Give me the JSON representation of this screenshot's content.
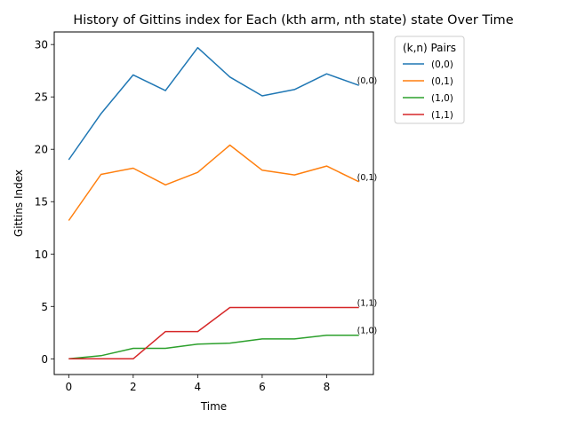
{
  "chart_data": {
    "type": "line",
    "title": "History of Gittins index for Each (kth arm, nth state) state Over Time",
    "xlabel": "Time",
    "ylabel": "Gittins Index",
    "x": [
      0,
      1,
      2,
      3,
      4,
      5,
      6,
      7,
      8,
      9
    ],
    "xlim": [
      -0.45,
      9.45
    ],
    "ylim": [
      -1.5,
      31.2
    ],
    "xticks": [
      0,
      2,
      4,
      6,
      8
    ],
    "yticks": [
      0,
      5,
      10,
      15,
      20,
      25,
      30
    ],
    "grid": false,
    "legend": {
      "title": "(k,n) Pairs",
      "placement": "outside-top-right"
    },
    "series": [
      {
        "name": "(0,0)",
        "color": "#1f77b4",
        "values": [
          19.0,
          23.4,
          27.1,
          25.6,
          29.7,
          26.9,
          25.1,
          25.7,
          27.2,
          26.1
        ]
      },
      {
        "name": "(0,1)",
        "color": "#ff7f0e",
        "values": [
          13.2,
          17.6,
          18.2,
          16.6,
          17.8,
          20.4,
          18.0,
          17.55,
          18.4,
          16.9
        ]
      },
      {
        "name": "(1,0)",
        "color": "#2ca02c",
        "values": [
          0.0,
          0.3,
          1.0,
          1.0,
          1.4,
          1.5,
          1.9,
          1.9,
          2.25,
          2.25
        ]
      },
      {
        "name": "(1,1)",
        "color": "#d62728",
        "values": [
          0.0,
          0.0,
          0.0,
          2.6,
          2.6,
          4.9,
          4.9,
          4.9,
          4.9,
          4.9
        ]
      }
    ],
    "end_labels": [
      {
        "series": "(0,0)",
        "text": "(0,0)"
      },
      {
        "series": "(0,1)",
        "text": "(0,1)"
      },
      {
        "series": "(1,1)",
        "text": "(1,1)"
      },
      {
        "series": "(1,0)",
        "text": "(1,0)"
      }
    ]
  }
}
